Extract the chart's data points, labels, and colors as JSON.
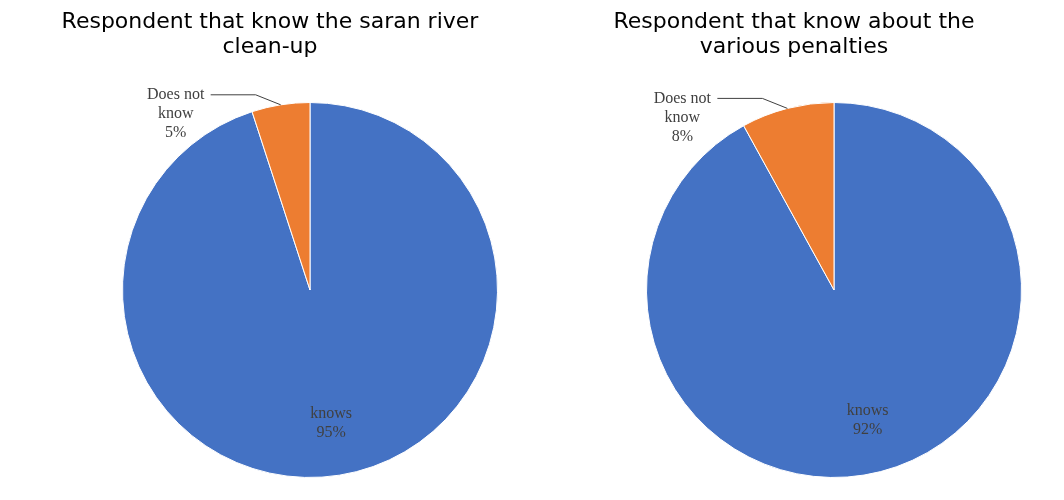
{
  "chart_data": [
    {
      "type": "pie",
      "title": "Respondent that know the saran river clean-up",
      "categories": [
        "knows",
        "Does not know"
      ],
      "values": [
        95,
        5
      ],
      "colors": [
        "#4472c4",
        "#ed7d31"
      ],
      "value_labels": [
        "95%",
        "5%"
      ],
      "legend": false
    },
    {
      "type": "pie",
      "title": "Respondent that know about the various penalties",
      "categories": [
        "knows",
        "Does not know"
      ],
      "values": [
        92,
        8
      ],
      "colors": [
        "#4472c4",
        "#ed7d31"
      ],
      "value_labels": [
        "92%",
        "8%"
      ],
      "legend": false
    }
  ]
}
